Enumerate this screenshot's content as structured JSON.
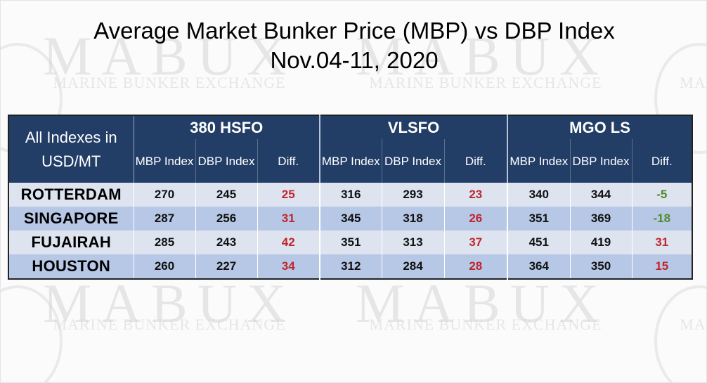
{
  "title": {
    "line1": "Average Market Bunker Price (MBP) vs DBP Index",
    "line2": "Nov.04-11, 2020"
  },
  "watermark": {
    "brand": "MABUX",
    "tagline": "MARINE BUNKER EXCHANGE",
    "partial": "MA"
  },
  "table": {
    "corner_label": "All Indexes in USD/MT",
    "groups": [
      "380 HSFO",
      "VLSFO",
      "MGO LS"
    ],
    "sub_headers": {
      "mbp": "MBP Index",
      "dbp": "DBP Index",
      "diff": "Diff."
    },
    "rows": [
      {
        "port": "ROTTERDAM",
        "values": [
          "270",
          "245",
          "25",
          "316",
          "293",
          "23",
          "340",
          "344",
          "-5"
        ]
      },
      {
        "port": "SINGAPORE",
        "values": [
          "287",
          "256",
          "31",
          "345",
          "318",
          "26",
          "351",
          "369",
          "-18"
        ]
      },
      {
        "port": "FUJAIRAH",
        "values": [
          "285",
          "243",
          "42",
          "351",
          "313",
          "37",
          "451",
          "419",
          "31"
        ]
      },
      {
        "port": "HOUSTON",
        "values": [
          "260",
          "227",
          "34",
          "312",
          "284",
          "28",
          "364",
          "350",
          "15"
        ]
      }
    ]
  },
  "colors": {
    "header_bg": "#233e66",
    "row_light": "#dde4f0",
    "row_dark": "#b7c7e6",
    "diff_positive": "#c0262c",
    "diff_negative": "#4f8a2a"
  },
  "chart_data": {
    "type": "table",
    "title": "Average Market Bunker Price (MBP) vs DBP Index",
    "subtitle": "Nov.04-11, 2020",
    "unit_label": "All Indexes in USD/MT",
    "columns": [
      "380 HSFO MBP Index",
      "380 HSFO DBP Index",
      "380 HSFO Diff.",
      "VLSFO MBP Index",
      "VLSFO DBP Index",
      "VLSFO Diff.",
      "MGO LS MBP Index",
      "MGO LS DBP Index",
      "MGO LS Diff."
    ],
    "rows": [
      {
        "port": "ROTTERDAM",
        "values": [
          270,
          245,
          25,
          316,
          293,
          23,
          340,
          344,
          -5
        ]
      },
      {
        "port": "SINGAPORE",
        "values": [
          287,
          256,
          31,
          345,
          318,
          26,
          351,
          369,
          -18
        ]
      },
      {
        "port": "FUJAIRAH",
        "values": [
          285,
          243,
          42,
          351,
          313,
          37,
          451,
          419,
          31
        ]
      },
      {
        "port": "HOUSTON",
        "values": [
          260,
          227,
          34,
          312,
          284,
          28,
          364,
          350,
          15
        ]
      }
    ]
  }
}
